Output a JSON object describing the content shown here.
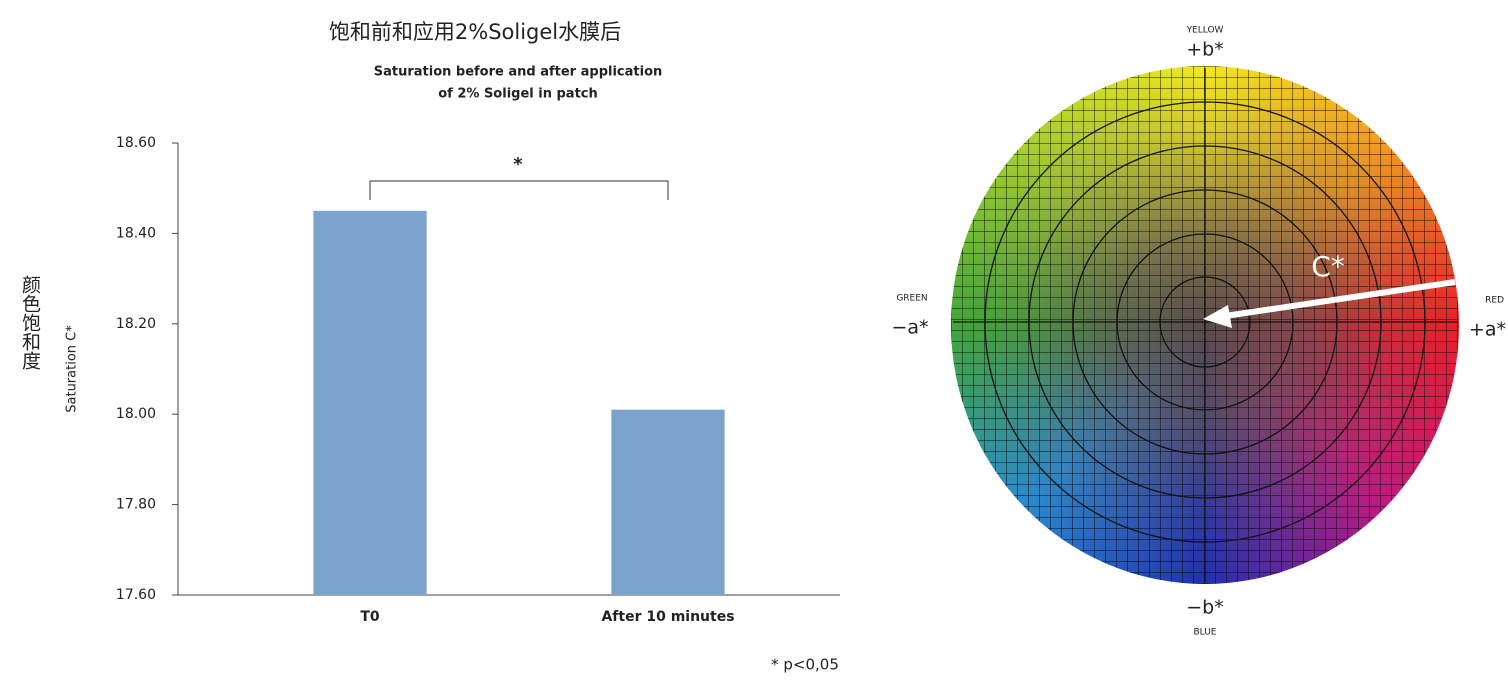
{
  "chart_data": {
    "type": "bar",
    "title": "饱和前和应用2%Soligel水膜后",
    "subtitle": [
      "Saturation before and after application",
      "of 2% Soligel in patch"
    ],
    "y_label": "Saturation C*",
    "y_label_cn": "颜色饱和度",
    "categories": [
      "T0",
      "After 10 minutes"
    ],
    "values": [
      18.45,
      18.01
    ],
    "color": "#7ba3cc",
    "ylim": [
      17.6,
      18.6
    ],
    "yticks": [
      {
        "value": 17.6,
        "label": "17.60"
      },
      {
        "value": 17.8,
        "label": "17.80"
      },
      {
        "value": 18.0,
        "label": "18.00"
      },
      {
        "value": 18.2,
        "label": "18.20"
      },
      {
        "value": 18.4,
        "label": "18.40"
      },
      {
        "value": 18.6,
        "label": "18.60"
      }
    ],
    "grid": false,
    "significance": "*",
    "footnote": "* p<0,05"
  },
  "color_wheel": {
    "top": {
      "name": "YELLOW",
      "axis": "+b*"
    },
    "left": {
      "name": "GREEN",
      "axis": "−a*"
    },
    "right": {
      "name": "RED",
      "axis": "+a*"
    },
    "bottom": {
      "name": "BLUE",
      "axis": "−b*"
    },
    "vector": "C*"
  }
}
